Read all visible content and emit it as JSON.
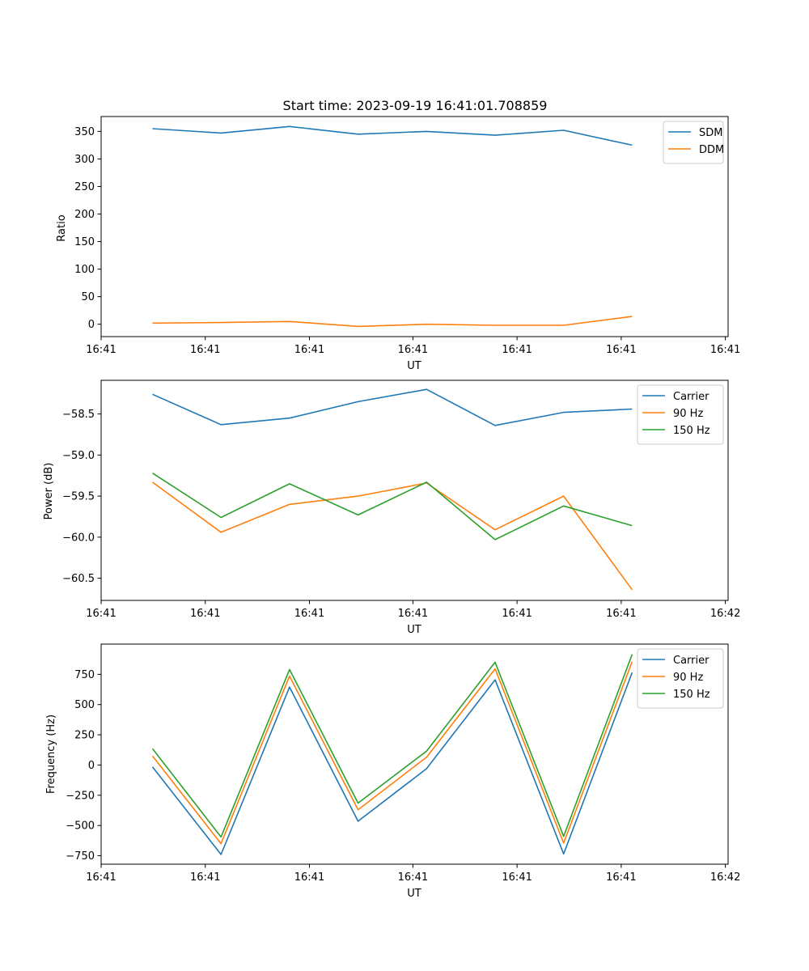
{
  "chart_data": [
    {
      "type": "line",
      "title": "Start time: 2023-09-19 16:41:01.708859",
      "xlabel": "UT",
      "ylabel": "Ratio",
      "x": [
        0,
        1,
        2,
        3,
        4,
        5,
        6,
        7
      ],
      "xlim": [
        -0.75,
        8.4
      ],
      "x_ticks": [
        -0.75,
        0.77,
        2.29,
        3.8,
        5.32,
        6.84,
        8.36
      ],
      "x_tick_labels": [
        "16:41",
        "16:41",
        "16:41",
        "16:41",
        "16:41",
        "16:41",
        "16:41"
      ],
      "ylim": [
        -22.5,
        377
      ],
      "y_ticks": [
        0,
        50,
        100,
        150,
        200,
        250,
        300,
        350
      ],
      "y_tick_labels": [
        "0",
        "50",
        "100",
        "150",
        "200",
        "250",
        "300",
        "350"
      ],
      "legend": "top-right",
      "series": [
        {
          "name": "SDM",
          "color": "#1f77b4",
          "values": [
            355,
            347,
            359,
            345,
            350,
            343,
            352,
            325
          ]
        },
        {
          "name": "DDM",
          "color": "#ff7f0e",
          "values": [
            2,
            3,
            5,
            -4,
            0,
            -2,
            -2,
            14
          ]
        }
      ]
    },
    {
      "type": "line",
      "title": "",
      "xlabel": "UT",
      "ylabel": "Power (dB)",
      "x": [
        0,
        1,
        2,
        3,
        4,
        5,
        6,
        7
      ],
      "xlim": [
        -0.75,
        8.4
      ],
      "x_ticks": [
        -0.75,
        0.77,
        2.29,
        3.8,
        5.32,
        6.84,
        8.36
      ],
      "x_tick_labels": [
        "16:41",
        "16:41",
        "16:41",
        "16:41",
        "16:41",
        "16:41",
        "16:42"
      ],
      "ylim": [
        -60.77,
        -58.09
      ],
      "y_ticks": [
        -60.5,
        -60.0,
        -59.5,
        -59.0,
        -58.5
      ],
      "y_tick_labels": [
        "−60.5",
        "−60.0",
        "−59.5",
        "−59.0",
        "−58.5"
      ],
      "legend": "top-right",
      "series": [
        {
          "name": "Carrier",
          "color": "#1f77b4",
          "values": [
            -58.26,
            -58.63,
            -58.55,
            -58.35,
            -58.2,
            -58.64,
            -58.48,
            -58.44
          ]
        },
        {
          "name": "90 Hz",
          "color": "#ff7f0e",
          "values": [
            -59.33,
            -59.94,
            -59.6,
            -59.5,
            -59.34,
            -59.91,
            -59.5,
            -60.64
          ]
        },
        {
          "name": "150 Hz",
          "color": "#2ca02c",
          "values": [
            -59.22,
            -59.76,
            -59.35,
            -59.73,
            -59.33,
            -60.03,
            -59.62,
            -59.86
          ]
        }
      ]
    },
    {
      "type": "line",
      "title": "",
      "xlabel": "UT",
      "ylabel": "Frequency (Hz)",
      "x": [
        0,
        1,
        2,
        3,
        4,
        5,
        6,
        7
      ],
      "xlim": [
        -0.75,
        8.4
      ],
      "x_ticks": [
        -0.75,
        0.77,
        2.29,
        3.8,
        5.32,
        6.84,
        8.36
      ],
      "x_tick_labels": [
        "16:41",
        "16:41",
        "16:41",
        "16:41",
        "16:41",
        "16:41",
        "16:42"
      ],
      "ylim": [
        -820,
        1000
      ],
      "y_ticks": [
        -750,
        -500,
        -250,
        0,
        250,
        500,
        750
      ],
      "y_tick_labels": [
        "−750",
        "−500",
        "−250",
        "0",
        "250",
        "500",
        "750"
      ],
      "legend": "top-right",
      "series": [
        {
          "name": "Carrier",
          "color": "#1f77b4",
          "values": [
            -15,
            -740,
            645,
            -465,
            -30,
            705,
            -735,
            765
          ]
        },
        {
          "name": "90 Hz",
          "color": "#ff7f0e",
          "values": [
            75,
            -650,
            735,
            -370,
            65,
            795,
            -645,
            855
          ]
        },
        {
          "name": "150 Hz",
          "color": "#2ca02c",
          "values": [
            135,
            -595,
            790,
            -315,
            115,
            850,
            -590,
            915
          ]
        }
      ]
    }
  ]
}
